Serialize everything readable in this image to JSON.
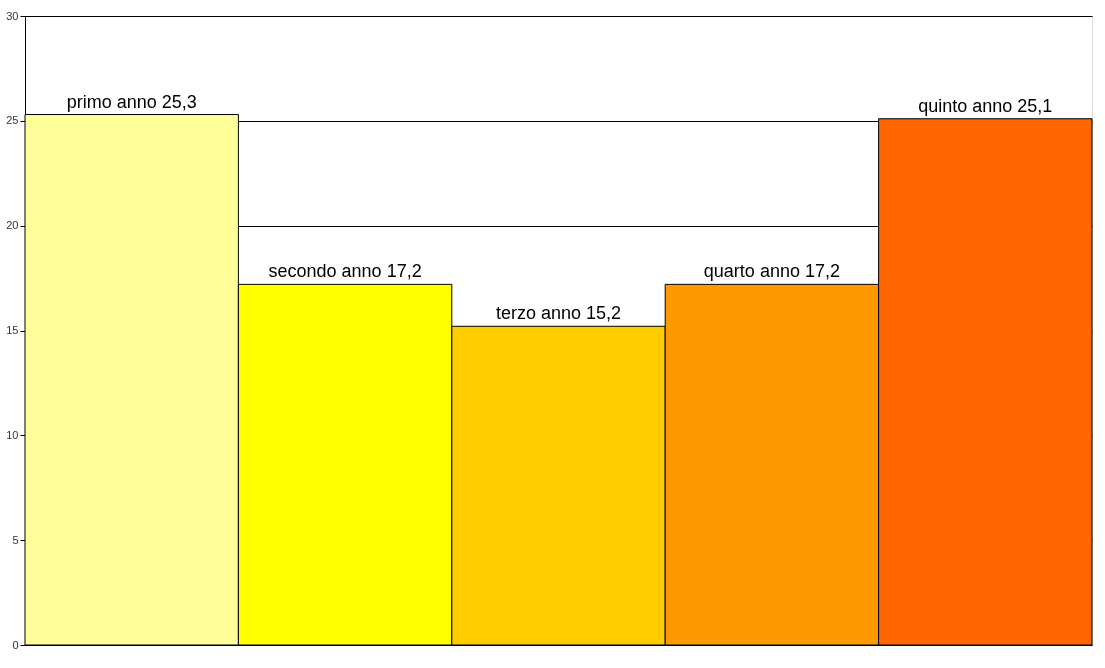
{
  "chart_data": {
    "type": "bar",
    "categories": [
      null,
      null,
      null,
      null,
      null
    ],
    "values": [
      25.3,
      17.2,
      15.2,
      17.2,
      25.1
    ],
    "colors": [
      "#ffff99",
      "#ffff00",
      "#ffcc00",
      "#ff9900",
      "#ff6600"
    ],
    "value_labels": [
      "primo anno 25,3",
      "secondo anno 17,2",
      "terzo anno 15,2",
      "quarto anno 17,2",
      "quinto anno 25,1"
    ],
    "ylim": [
      0,
      30
    ],
    "yticks": [
      0,
      5,
      10,
      15,
      20,
      25,
      30
    ],
    "grid": "y",
    "tick_labels": "y"
  }
}
